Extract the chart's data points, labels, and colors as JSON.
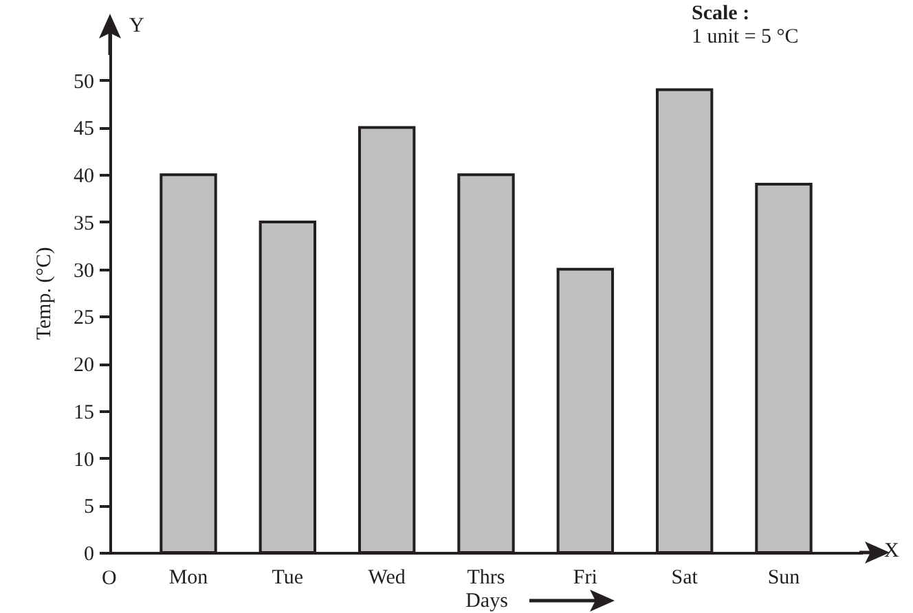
{
  "chart_data": {
    "type": "bar",
    "xlabel": "Days",
    "ylabel": "Temp. (°C)",
    "categories": [
      "Mon",
      "Tue",
      "Wed",
      "Thrs",
      "Fri",
      "Sat",
      "Sun"
    ],
    "values": [
      40,
      35,
      45,
      40,
      30,
      49,
      39
    ],
    "color": "#c0c0c0",
    "ylim": [
      0,
      55
    ],
    "yticks": [
      0,
      5,
      10,
      15,
      20,
      25,
      30,
      35,
      40,
      45,
      50
    ],
    "grid": false,
    "annotations": [
      "Scale :",
      "1 unit = 5 °C",
      "Y",
      "X",
      "O"
    ]
  }
}
